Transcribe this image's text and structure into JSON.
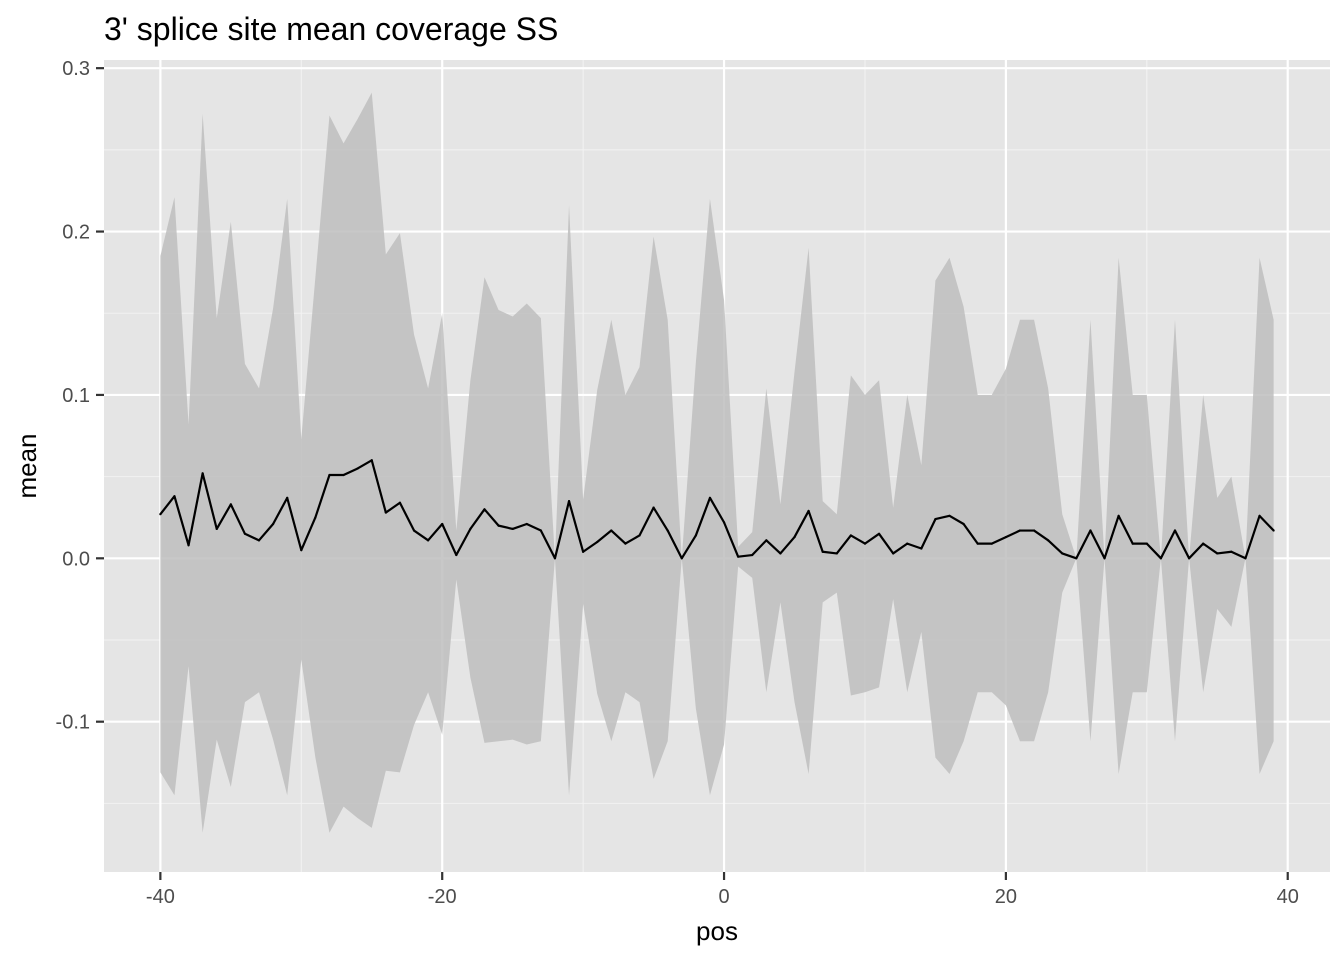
{
  "chart_data": {
    "type": "line",
    "title": "3' splice site mean coverage SS",
    "xlabel": "pos",
    "ylabel": "mean",
    "xlim": [
      -44,
      43
    ],
    "ylim": [
      -0.192,
      0.305
    ],
    "x_ticks": [
      -40,
      -20,
      0,
      20,
      40
    ],
    "x_tick_labels": [
      "-40",
      "-20",
      "0",
      "20",
      "40"
    ],
    "y_ticks": [
      -0.1,
      0.0,
      0.1,
      0.2,
      0.3
    ],
    "y_tick_labels": [
      "-0.1",
      "0.0",
      "0.1",
      "0.2",
      "0.3"
    ],
    "grid": true,
    "panel_background": "#e5e5e5",
    "ribbon_color": "#bebebe",
    "line_color": "#000000",
    "series": [
      {
        "x": [
          -40,
          -39,
          -38,
          -37,
          -36,
          -35,
          -34,
          -33,
          -32,
          -31,
          -30,
          -29,
          -28,
          -27,
          -26,
          -25,
          -24,
          -23,
          -22,
          -21,
          -20,
          -19,
          -18,
          -17,
          -16,
          -15,
          -14,
          -13,
          -12,
          -11,
          -10,
          -9,
          -8,
          -7,
          -6,
          -5,
          -4,
          -3,
          -2,
          -1,
          0,
          1,
          2,
          3,
          4,
          5,
          6,
          7,
          8,
          9,
          10,
          11,
          12,
          13,
          14,
          15,
          16,
          17,
          18,
          19,
          20,
          21,
          22,
          23,
          24,
          25,
          26,
          27,
          28,
          29,
          30,
          31,
          32,
          33,
          34,
          35,
          36,
          37,
          38,
          39
        ],
        "mean": [
          0.027,
          0.038,
          0.008,
          0.052,
          0.018,
          0.033,
          0.015,
          0.011,
          0.021,
          0.037,
          0.005,
          0.025,
          0.051,
          0.051,
          0.055,
          0.06,
          0.028,
          0.034,
          0.017,
          0.011,
          0.021,
          0.002,
          0.018,
          0.03,
          0.02,
          0.018,
          0.021,
          0.017,
          0.0,
          0.035,
          0.004,
          0.01,
          0.017,
          0.009,
          0.014,
          0.031,
          0.017,
          0.0,
          0.014,
          0.037,
          0.022,
          0.001,
          0.002,
          0.011,
          0.003,
          0.013,
          0.029,
          0.004,
          0.003,
          0.014,
          0.009,
          0.015,
          0.003,
          0.009,
          0.006,
          0.024,
          0.026,
          0.021,
          0.009,
          0.009,
          0.013,
          0.017,
          0.017,
          0.011,
          0.003,
          0.0,
          0.017,
          0.0,
          0.026,
          0.009,
          0.009,
          0.0,
          0.017,
          0.0,
          0.009,
          0.003,
          0.004,
          0.0,
          0.026,
          0.017
        ],
        "lower": [
          -0.131,
          -0.145,
          -0.066,
          -0.168,
          -0.111,
          -0.14,
          -0.088,
          -0.082,
          -0.111,
          -0.145,
          -0.062,
          -0.122,
          -0.168,
          -0.152,
          -0.159,
          -0.165,
          -0.13,
          -0.131,
          -0.102,
          -0.082,
          -0.108,
          -0.013,
          -0.073,
          -0.113,
          -0.112,
          -0.111,
          -0.114,
          -0.112,
          0.0,
          -0.145,
          -0.028,
          -0.083,
          -0.112,
          -0.082,
          -0.088,
          -0.135,
          -0.112,
          0.0,
          -0.092,
          -0.145,
          -0.114,
          -0.005,
          -0.012,
          -0.082,
          -0.027,
          -0.088,
          -0.132,
          -0.027,
          -0.021,
          -0.084,
          -0.082,
          -0.079,
          -0.025,
          -0.082,
          -0.045,
          -0.122,
          -0.132,
          -0.112,
          -0.082,
          -0.082,
          -0.09,
          -0.112,
          -0.112,
          -0.082,
          -0.021,
          0.0,
          -0.112,
          0.0,
          -0.132,
          -0.082,
          -0.082,
          0.0,
          -0.112,
          0.0,
          -0.082,
          -0.031,
          -0.042,
          0.0,
          -0.132,
          -0.112
        ],
        "upper": [
          0.185,
          0.221,
          0.082,
          0.272,
          0.147,
          0.206,
          0.119,
          0.104,
          0.153,
          0.22,
          0.073,
          0.172,
          0.271,
          0.254,
          0.269,
          0.285,
          0.186,
          0.199,
          0.137,
          0.104,
          0.15,
          0.017,
          0.109,
          0.172,
          0.152,
          0.148,
          0.156,
          0.147,
          0.0,
          0.216,
          0.036,
          0.103,
          0.146,
          0.1,
          0.117,
          0.197,
          0.146,
          0.0,
          0.12,
          0.22,
          0.158,
          0.007,
          0.016,
          0.104,
          0.033,
          0.114,
          0.19,
          0.035,
          0.027,
          0.112,
          0.1,
          0.109,
          0.031,
          0.1,
          0.057,
          0.17,
          0.184,
          0.154,
          0.1,
          0.1,
          0.116,
          0.146,
          0.146,
          0.104,
          0.027,
          0.0,
          0.146,
          0.0,
          0.184,
          0.1,
          0.1,
          0.0,
          0.146,
          0.0,
          0.1,
          0.037,
          0.05,
          0.0,
          0.184,
          0.146
        ]
      }
    ]
  }
}
